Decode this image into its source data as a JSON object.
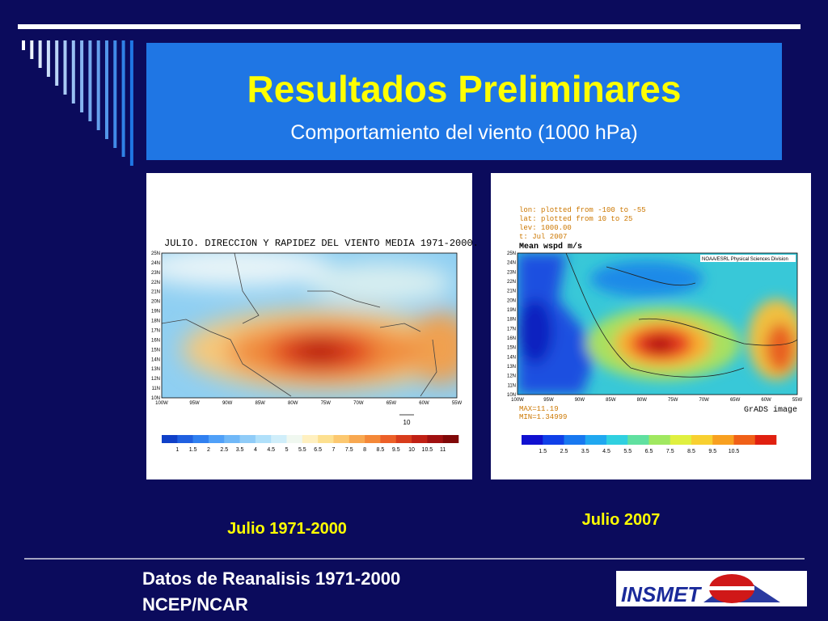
{
  "header": {
    "title": "Resultados Preliminares",
    "subtitle": "Comportamiento del viento (1000 hPa)"
  },
  "figures": [
    {
      "title": "JULIO. DIRECCION Y RAPIDEZ DEL VIENTO MEDIA 1971-2000.",
      "lat_labels": [
        "25N",
        "24N",
        "23N",
        "22N",
        "21N",
        "20N",
        "19N",
        "18N",
        "17N",
        "16N",
        "15N",
        "14N",
        "13N",
        "12N",
        "11N",
        "10N"
      ],
      "lon_labels": [
        "100W",
        "95W",
        "90W",
        "85W",
        "80W",
        "75W",
        "70W",
        "65W",
        "60W",
        "55W"
      ],
      "vector_label": "10",
      "colorbar_labels": [
        "1",
        "1.5",
        "2",
        "2.5",
        "3.5",
        "4",
        "4.5",
        "5",
        "5.5",
        "6.5",
        "7",
        "7.5",
        "8",
        "8.5",
        "9.5",
        "10",
        "10.5",
        "11"
      ],
      "caption": "Julio 1971-2000"
    },
    {
      "info": [
        "lon: plotted from -100 to -55",
        "lat: plotted from 10 to 25",
        "lev: 1000.00",
        "t: Jul 2007"
      ],
      "title": "Mean wspd m/s",
      "source": "NOAA/ESRL Physical Sciences Division",
      "lat_labels": [
        "25N",
        "24N",
        "23N",
        "22N",
        "21N",
        "20N",
        "19N",
        "18N",
        "17N",
        "16N",
        "15N",
        "14N",
        "13N",
        "12N",
        "11N",
        "10N"
      ],
      "lon_labels": [
        "100W",
        "95W",
        "90W",
        "85W",
        "80W",
        "75W",
        "70W",
        "65W",
        "60W",
        "55W"
      ],
      "max": "MAX=11.19",
      "min": "MIN=1.34999",
      "footer": "GrADS image",
      "colorbar_labels": [
        "1.5",
        "2.5",
        "3.5",
        "4.5",
        "5.5",
        "6.5",
        "7.5",
        "8.5",
        "9.5",
        "10.5"
      ],
      "caption": "Julio 2007"
    }
  ],
  "footer": {
    "lines": [
      "Datos de Reanalisis 1971-2000",
      "NCEP/NCAR"
    ],
    "logo": "INSMET"
  }
}
